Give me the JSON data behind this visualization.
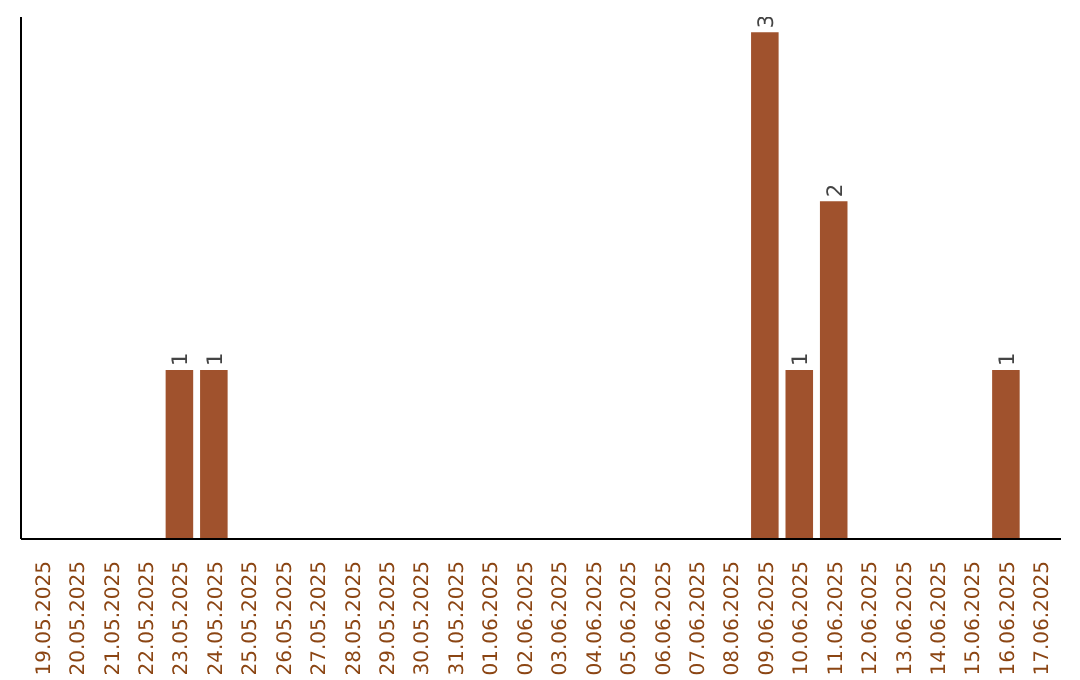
{
  "chart_data": {
    "type": "bar",
    "categories": [
      "19.05.2025",
      "20.05.2025",
      "21.05.2025",
      "22.05.2025",
      "23.05.2025",
      "24.05.2025",
      "25.05.2025",
      "26.05.2025",
      "27.05.2025",
      "28.05.2025",
      "29.05.2025",
      "30.05.2025",
      "31.05.2025",
      "01.06.2025",
      "02.06.2025",
      "03.06.2025",
      "04.06.2025",
      "05.06.2025",
      "06.06.2025",
      "07.06.2025",
      "08.06.2025",
      "09.06.2025",
      "10.06.2025",
      "11.06.2025",
      "12.06.2025",
      "13.06.2025",
      "14.06.2025",
      "15.06.2025",
      "16.06.2025",
      "17.06.2025"
    ],
    "values": [
      0,
      0,
      0,
      0,
      1,
      1,
      0,
      0,
      0,
      0,
      0,
      0,
      0,
      0,
      0,
      0,
      0,
      0,
      0,
      0,
      0,
      3,
      1,
      2,
      0,
      0,
      0,
      0,
      1,
      0
    ],
    "value_labels": [
      null,
      null,
      null,
      null,
      "1",
      "1",
      null,
      null,
      null,
      null,
      null,
      null,
      null,
      null,
      null,
      null,
      null,
      null,
      null,
      null,
      null,
      "3",
      "1",
      "2",
      null,
      null,
      null,
      null,
      "1",
      null
    ],
    "color": "#a0522d",
    "grid": false,
    "tick_labels": "x"
  }
}
